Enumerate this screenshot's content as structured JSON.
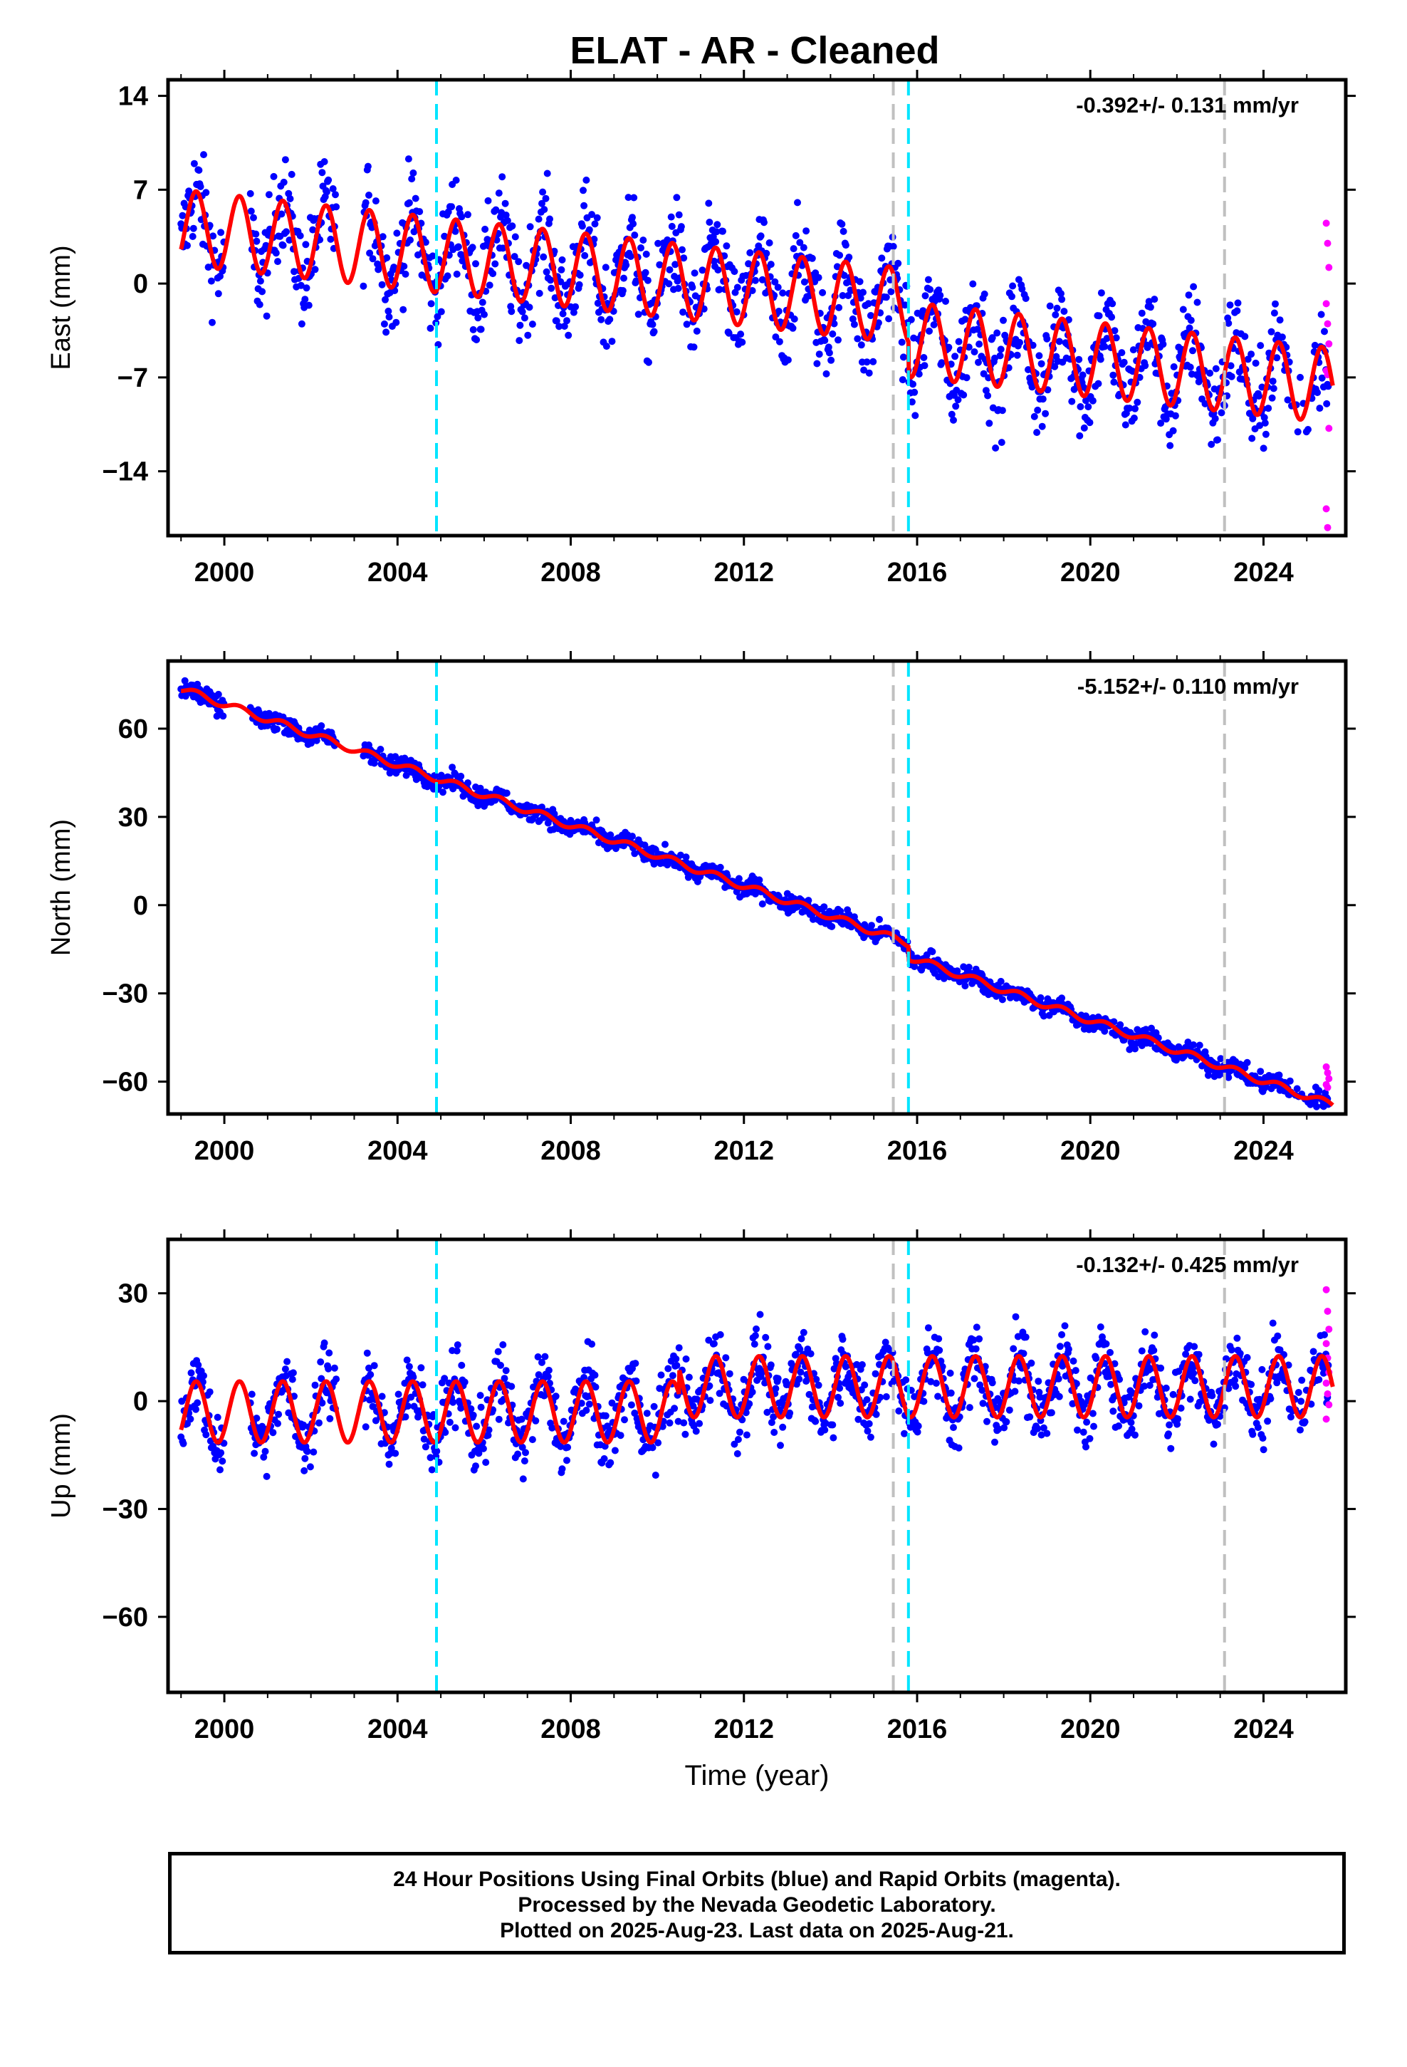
{
  "title": "ELAT  - AR - Cleaned",
  "footer": {
    "line1": "24 Hour Positions Using Final Orbits (blue) and Rapid Orbits (magenta).",
    "line2": "Processed by the Nevada Geodetic Laboratory.",
    "line3": "Plotted on 2025-Aug-23. Last data on 2025-Aug-21."
  },
  "colors": {
    "final_orbits": "#0000ff",
    "rapid_orbits": "#ff00ff",
    "model_fit": "#ff0000",
    "event_cyan": "#00e5ff",
    "event_gray": "#c0c0c0"
  },
  "chart_data": [
    {
      "type": "scatter",
      "ylabel": "East (mm)",
      "xlabel": "",
      "rate_label": "-0.392+/- 0.131 mm/yr",
      "xlim": [
        1998.7,
        2025.9
      ],
      "ylim": [
        -18.8,
        15.2
      ],
      "xticks": [
        2000,
        2004,
        2008,
        2012,
        2016,
        2020,
        2024
      ],
      "xtick_labels": [
        "2000",
        "2004",
        "2008",
        "2012",
        "2016",
        "2020",
        "2024"
      ],
      "yticks": [
        14,
        7,
        0,
        -7,
        -14
      ],
      "ytick_labels": [
        "14",
        "7",
        "0",
        "-7",
        "-14"
      ],
      "model": {
        "intercept": 4.2,
        "trend": -0.35,
        "amplitude": 2.8,
        "steps": [
          {
            "x": 2015.8,
            "dy": -2.5
          }
        ]
      },
      "rapid_values": [
        4.5,
        3.0,
        1.2,
        -1.5,
        -3.0,
        -4.5,
        -6.5,
        -6.8,
        -10.8,
        -16.8,
        -18.2
      ],
      "event_lines": [
        {
          "x": 2004.9,
          "color": "cyan"
        },
        {
          "x": 2015.45,
          "color": "gray"
        },
        {
          "x": 2015.8,
          "color": "cyan"
        },
        {
          "x": 2023.1,
          "color": "gray"
        }
      ],
      "grid": false,
      "legend": "none"
    },
    {
      "type": "scatter",
      "ylabel": "North (mm)",
      "xlabel": "",
      "rate_label": "-5.152+/- 0.110 mm/yr",
      "xlim": [
        1998.7,
        2025.9
      ],
      "ylim": [
        -71,
        83
      ],
      "xticks": [
        2000,
        2004,
        2008,
        2012,
        2016,
        2020,
        2024
      ],
      "xtick_labels": [
        "2000",
        "2004",
        "2008",
        "2012",
        "2016",
        "2020",
        "2024"
      ],
      "yticks": [
        60,
        30,
        0,
        -30,
        -60
      ],
      "ytick_labels": [
        "60",
        "30",
        "0",
        "-30",
        "-60"
      ],
      "model": {
        "intercept": 73.5,
        "trend": -5.15,
        "amplitude": 1.2,
        "steps": [
          {
            "x": 2015.8,
            "dy": -4.5
          }
        ]
      },
      "rapid_values": [
        -55,
        -57,
        -59,
        -61,
        -62
      ],
      "event_lines": [
        {
          "x": 2004.9,
          "color": "cyan"
        },
        {
          "x": 2015.45,
          "color": "gray"
        },
        {
          "x": 2015.8,
          "color": "cyan"
        },
        {
          "x": 2023.1,
          "color": "gray"
        }
      ],
      "grid": false,
      "legend": "none"
    },
    {
      "type": "scatter",
      "ylabel": "Up (mm)",
      "xlabel": "Time (year)",
      "rate_label": "-0.132+/- 0.425 mm/yr",
      "xlim": [
        1998.7,
        2025.9
      ],
      "ylim": [
        -81,
        45
      ],
      "xticks": [
        2000,
        2004,
        2008,
        2012,
        2016,
        2020,
        2024
      ],
      "xtick_labels": [
        "2000",
        "2004",
        "2008",
        "2012",
        "2016",
        "2020",
        "2024"
      ],
      "yticks": [
        30,
        0,
        -30,
        -60
      ],
      "ytick_labels": [
        "30",
        "0",
        "-30",
        "-60"
      ],
      "model": {
        "intercept": -3.0,
        "trend": 0.0,
        "amplitude": 8.5,
        "steps": [
          {
            "x": 2010.5,
            "dy": 7.0
          }
        ]
      },
      "rapid_values": [
        31,
        25,
        20,
        16,
        12,
        8,
        5,
        2,
        -1,
        -5
      ],
      "event_lines": [
        {
          "x": 2004.9,
          "color": "cyan"
        },
        {
          "x": 2015.45,
          "color": "gray"
        },
        {
          "x": 2015.8,
          "color": "cyan"
        },
        {
          "x": 2023.1,
          "color": "gray"
        }
      ],
      "grid": false,
      "legend": "none"
    }
  ]
}
